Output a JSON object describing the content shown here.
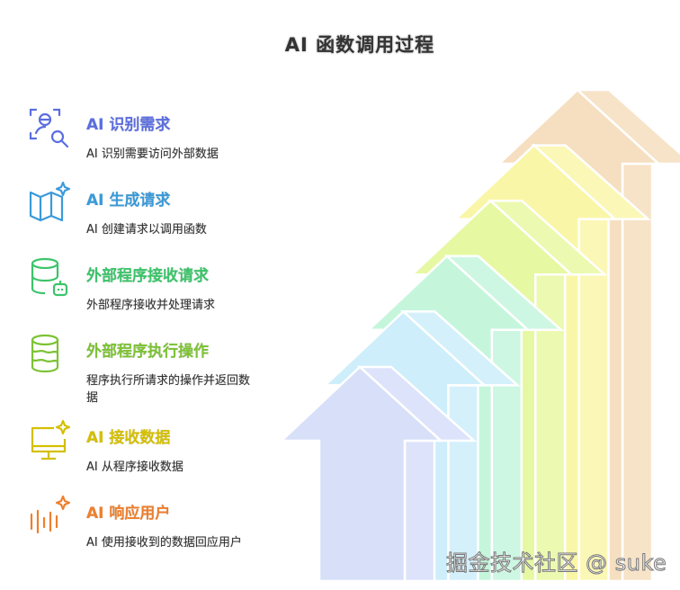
{
  "title": "AI 函数调用过程",
  "steps": [
    {
      "title": "AI 识别需求",
      "desc": "AI 识别需要访问外部数据",
      "color": "#5b6ee0",
      "icon": "face-search-icon"
    },
    {
      "title": "AI 生成请求",
      "desc": "AI 创建请求以调用函数",
      "color": "#3a9ad9",
      "icon": "map-sparkle-icon"
    },
    {
      "title": "外部程序接收请求",
      "desc": "外部程序接收并处理请求",
      "color": "#3cc46a",
      "icon": "database-bot-icon"
    },
    {
      "title": "外部程序执行操作",
      "desc": "程序执行所请求的操作并返回数据",
      "color": "#7cc234",
      "icon": "database-icon"
    },
    {
      "title": "AI 接收数据",
      "desc": "AI 从程序接收数据",
      "color": "#d4bf00",
      "icon": "monitor-sparkle-icon"
    },
    {
      "title": "AI 响应用户",
      "desc": "AI 使用接收到的数据回应用户",
      "color": "#ee7f2c",
      "icon": "audio-sparkle-icon"
    }
  ],
  "arrow_colors": [
    {
      "front": "#d7e0f8",
      "side": "#dde3fa"
    },
    {
      "front": "#cdeefa",
      "side": "#d4f0fb"
    },
    {
      "front": "#c5f6dc",
      "side": "#cdf7e2"
    },
    {
      "front": "#e6f8a2",
      "side": "#ecf9b0"
    },
    {
      "front": "#faf6a8",
      "side": "#fbf7b6"
    },
    {
      "front": "#f6dfc0",
      "side": "#f7e3c8"
    }
  ],
  "watermark": "掘金技术社区 @ suke"
}
